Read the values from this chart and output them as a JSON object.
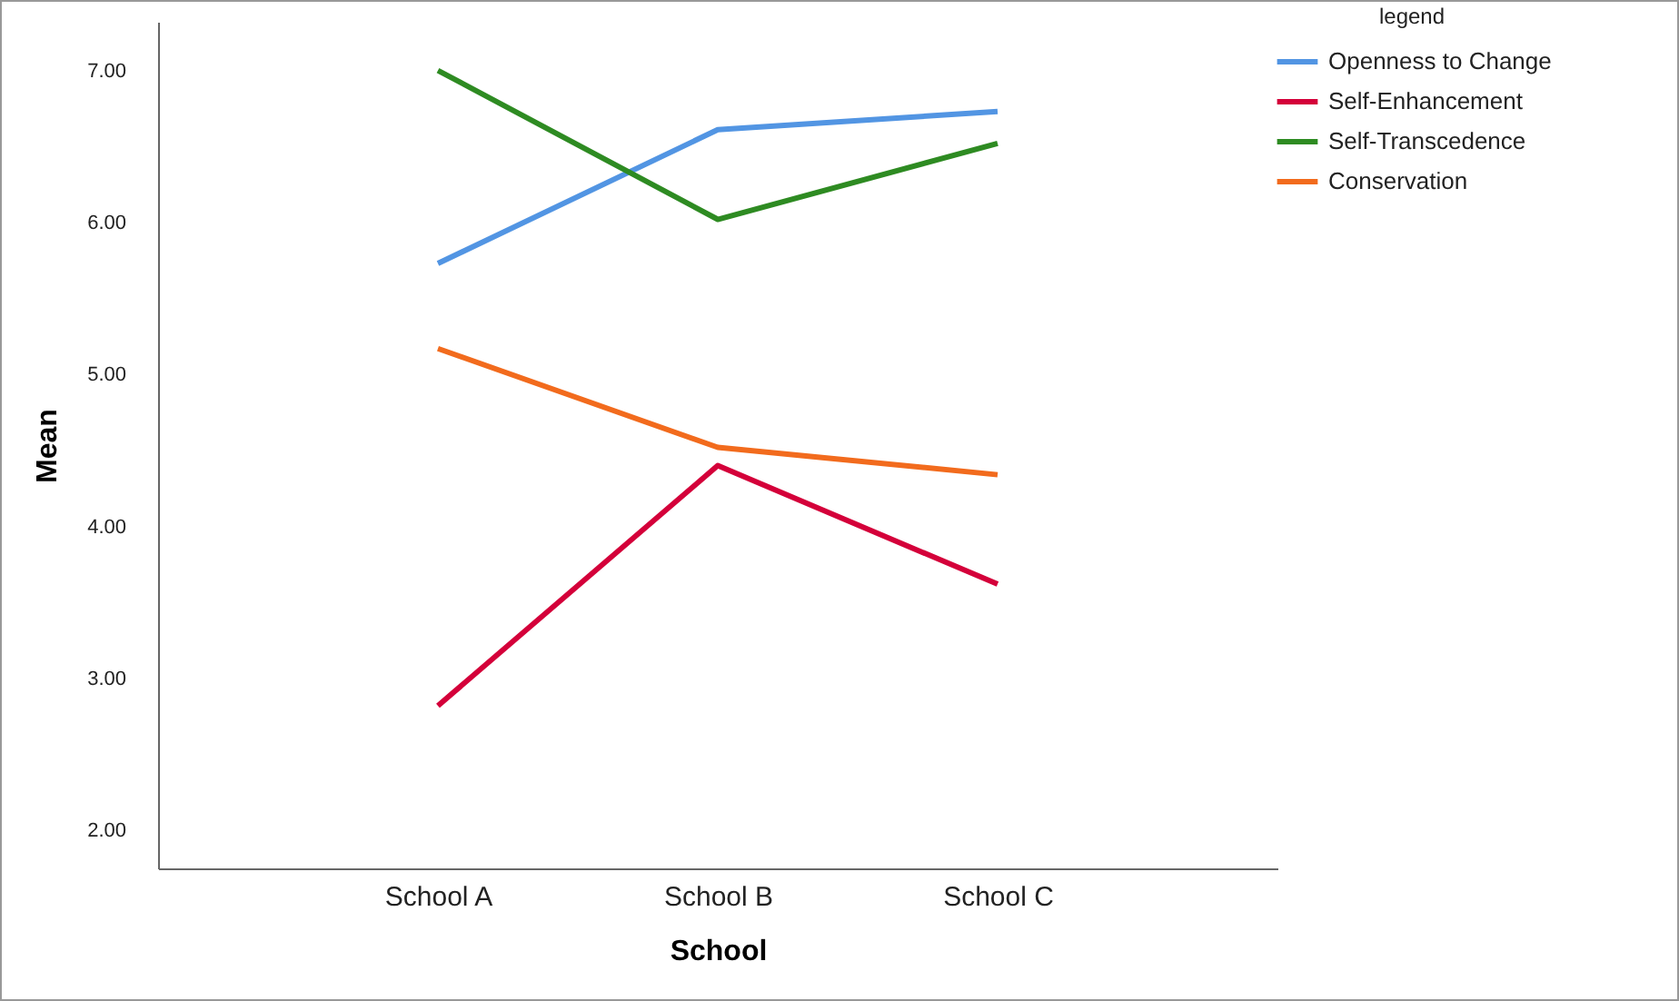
{
  "chart_data": {
    "type": "line",
    "xlabel": "School",
    "ylabel": "Mean",
    "legend_title": "legend",
    "categories": [
      "School A",
      "School B",
      "School C"
    ],
    "series": [
      {
        "name": "Openness to Change",
        "color": "#5295e3",
        "values": [
          5.73,
          6.61,
          6.73
        ]
      },
      {
        "name": "Self-Enhancement",
        "color": "#d4003a",
        "values": [
          2.82,
          4.4,
          3.62
        ]
      },
      {
        "name": "Self-Transcedence",
        "color": "#2e8b22",
        "values": [
          7.0,
          6.02,
          6.52
        ]
      },
      {
        "name": "Conservation",
        "color": "#f26b1d",
        "values": [
          5.17,
          4.52,
          4.34
        ]
      }
    ],
    "ylim": [
      1.75,
      7.32
    ],
    "yticks": [
      {
        "value": 2,
        "label": "2.00"
      },
      {
        "value": 3,
        "label": "3.00"
      },
      {
        "value": 4,
        "label": "4.00"
      },
      {
        "value": 5,
        "label": "5.00"
      },
      {
        "value": 6,
        "label": "6.00"
      },
      {
        "value": 7,
        "label": "7.00"
      }
    ],
    "grid": false,
    "legend": "top right",
    "marker": "none",
    "line_style": "solid"
  }
}
